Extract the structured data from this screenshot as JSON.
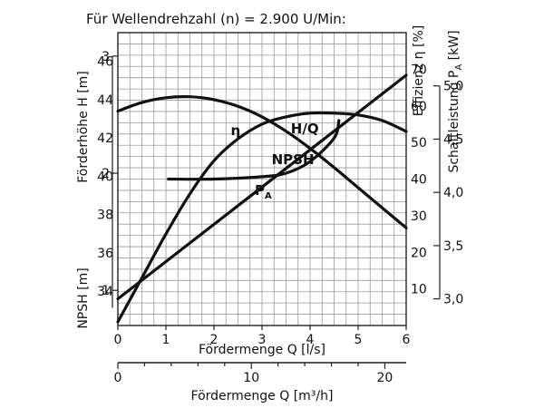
{
  "chart_data": {
    "type": "line",
    "title": "Für Wellendrehzahl (n) = 2.900 U/Min:",
    "x_axis": {
      "label": "Fördermenge Q [l/s]",
      "range": [
        0,
        6
      ],
      "ticks": [
        "0",
        "1",
        "2",
        "3",
        "4",
        "5",
        "6"
      ]
    },
    "x_axis_secondary": {
      "label": "Fördermenge Q [m³/h]",
      "range": [
        0,
        21.6
      ],
      "ticks": [
        "0",
        "10",
        "20"
      ]
    },
    "y_axis_head": {
      "label": "Förderhöhe H [m]",
      "range": [
        32.2,
        47.5
      ],
      "ticks": [
        "34",
        "36",
        "38",
        "40",
        "42",
        "44",
        "46"
      ]
    },
    "y_axis_npsh": {
      "label": "NPSH [m]",
      "range": [
        0.7,
        3.2
      ],
      "ticks": [
        "1",
        "2",
        "3"
      ]
    },
    "y_axis_efficiency": {
      "label": "Effizienz η [%]",
      "range": [
        0,
        80
      ],
      "ticks": [
        "10",
        "20",
        "30",
        "40",
        "50",
        "60",
        "70"
      ]
    },
    "y_axis_power": {
      "label": "Schaftleistung P_A [kW]",
      "range": [
        2.75,
        5.5
      ],
      "ticks": [
        "3,0",
        "3,5",
        "4,0",
        "4,5",
        "5,0"
      ]
    },
    "grid": true,
    "series": [
      {
        "name": "H/Q",
        "axis": "y_axis_head",
        "x": [
          0,
          0.5,
          1,
          1.5,
          2,
          2.5,
          3,
          3.5,
          4,
          4.5,
          5,
          5.5,
          6
        ],
        "y": [
          43.4,
          43.85,
          44.1,
          44.15,
          44.0,
          43.65,
          43.1,
          42.35,
          41.45,
          40.45,
          39.4,
          38.35,
          37.3
        ]
      },
      {
        "name": "η",
        "axis": "y_axis_efficiency",
        "x": [
          0,
          0.5,
          1,
          1.5,
          2,
          2.5,
          3,
          3.5,
          4,
          4.5,
          5,
          5.5,
          6
        ],
        "y": [
          1,
          13,
          25,
          36,
          45,
          51,
          55,
          57,
          58,
          58,
          57.5,
          56,
          53
        ]
      },
      {
        "name": "P_A",
        "axis": "y_axis_power",
        "x": [
          0,
          6
        ],
        "y": [
          3.0,
          5.1
        ]
      },
      {
        "name": "NPSH",
        "axis": "y_axis_npsh",
        "x": [
          1.05,
          2,
          3,
          3.5,
          4,
          4.5,
          4.6
        ],
        "y": [
          1.95,
          1.95,
          1.97,
          2.0,
          2.1,
          2.3,
          2.45
        ]
      }
    ],
    "series_labels": {
      "hq": "H/Q",
      "eta": "η",
      "pa_main": "P",
      "pa_sub": "A",
      "npsh": "NPSH"
    },
    "axis_title_parts": {
      "power_main": "Schaftleistung P",
      "power_sub": "A",
      "power_unit": " [kW]"
    }
  }
}
